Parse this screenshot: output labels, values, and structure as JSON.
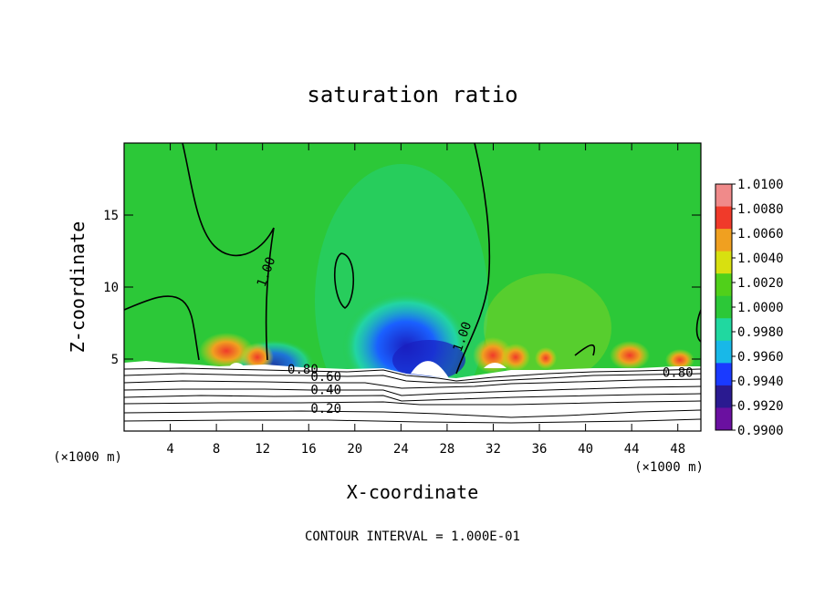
{
  "chart_data": {
    "type": "heatmap",
    "title": "saturation ratio",
    "xlabel": "X-coordinate",
    "ylabel": "Z-coordinate",
    "x_unit": "(×1000 m)",
    "x_unit_right": "(×1000 m)",
    "footer": "CONTOUR INTERVAL = 1.000E-01",
    "xlim": [
      0,
      50
    ],
    "ylim": [
      0,
      20
    ],
    "x_ticks": [
      4,
      8,
      12,
      16,
      20,
      24,
      28,
      32,
      36,
      40,
      44,
      48
    ],
    "y_ticks": [
      5,
      10,
      15
    ],
    "colorbar": {
      "labels": [
        "1.0100",
        "1.0080",
        "1.0060",
        "1.0040",
        "1.0020",
        "1.0000",
        "0.9980",
        "0.9960",
        "0.9940",
        "0.9920",
        "0.9900"
      ],
      "colors": [
        "#f08a8a",
        "#f03a2a",
        "#f0a020",
        "#d8e010",
        "#50d01a",
        "#2cc838",
        "#20d8a0",
        "#18b8e8",
        "#1a3aff",
        "#2a1a90",
        "#6a10a0"
      ]
    },
    "contour_labels": [
      {
        "text": "1.00",
        "x": 12.5,
        "y": 11.0
      },
      {
        "text": "1.00",
        "x": 29.5,
        "y": 6.5
      },
      {
        "text": "0.80",
        "x": 15.5,
        "y": 4.1
      },
      {
        "text": "0.60",
        "x": 17.5,
        "y": 3.6
      },
      {
        "text": "0.40",
        "x": 17.5,
        "y": 2.7
      },
      {
        "text": "0.20",
        "x": 17.5,
        "y": 1.4
      },
      {
        "text": "0.80",
        "x": 48.0,
        "y": 3.9
      }
    ]
  }
}
